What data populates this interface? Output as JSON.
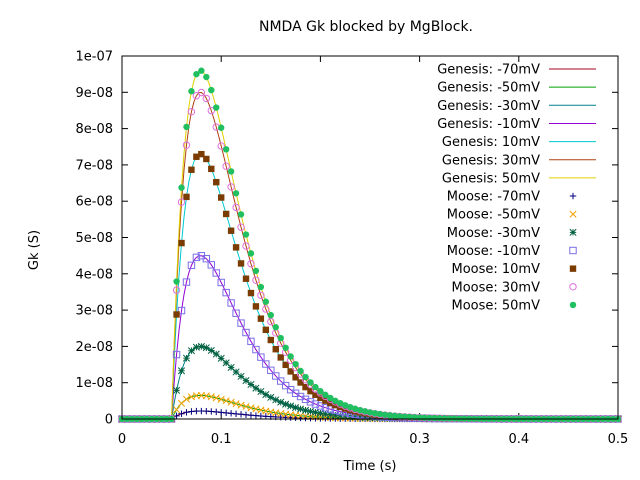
{
  "chart_data": {
    "type": "line",
    "title": "NMDA Gk blocked by MgBlock.",
    "xlabel": "Time (s)",
    "ylabel": "Gk (S)",
    "xlim": [
      0,
      0.5
    ],
    "ylim": [
      0,
      1e-07
    ],
    "x_ticks": [
      0,
      0.1,
      0.2,
      0.3,
      0.4,
      0.5
    ],
    "x_tick_labels": [
      "0",
      "0.1",
      "0.2",
      "0.3",
      "0.4",
      "0.5"
    ],
    "y_ticks": [
      0,
      1e-08,
      2e-08,
      3e-08,
      4e-08,
      5e-08,
      6e-08,
      7e-08,
      8e-08,
      9e-08,
      1e-07
    ],
    "y_tick_labels": [
      "0",
      "1e-08",
      "2e-08",
      "3e-08",
      "4e-08",
      "5e-08",
      "6e-08",
      "7e-08",
      "8e-08",
      "9e-08",
      "1e-07"
    ],
    "grid": false,
    "legend_position": "top-right",
    "pulse_onset": 0.05,
    "x": [
      0,
      0.04,
      0.05,
      0.055,
      0.06,
      0.065,
      0.07,
      0.075,
      0.08,
      0.085,
      0.09,
      0.095,
      0.1,
      0.11,
      0.12,
      0.13,
      0.14,
      0.15,
      0.16,
      0.17,
      0.18,
      0.19,
      0.2,
      0.22,
      0.24,
      0.26,
      0.28,
      0.3,
      0.32,
      0.34,
      0.36,
      0.38,
      0.4,
      0.45,
      0.5
    ],
    "series": [
      {
        "name": "Genesis: -70mV",
        "kind": "line",
        "color": "#a0001e",
        "peak": 2.2e-09
      },
      {
        "name": "Genesis: -50mV",
        "kind": "line",
        "color": "#00a000",
        "peak": 6.5e-09
      },
      {
        "name": "Genesis: -30mV",
        "kind": "line",
        "color": "#00808a",
        "peak": 2e-08
      },
      {
        "name": "Genesis: -10mV",
        "kind": "line",
        "color": "#9400d3",
        "peak": 4.5e-08
      },
      {
        "name": "Genesis: 10mV",
        "kind": "line",
        "color": "#00c8d0",
        "peak": 7.3e-08
      },
      {
        "name": "Genesis: 30mV",
        "kind": "line",
        "color": "#b04010",
        "peak": 9e-08
      },
      {
        "name": "Genesis: 50mV",
        "kind": "line",
        "color": "#e0d000",
        "peak": 9.6e-08
      },
      {
        "name": "Moose: -70mV",
        "kind": "points",
        "marker": "plus",
        "color": "#000080",
        "peak": 2.2e-09
      },
      {
        "name": "Moose: -50mV",
        "kind": "points",
        "marker": "cross",
        "color": "#f0a000",
        "peak": 6.5e-09
      },
      {
        "name": "Moose: -30mV",
        "kind": "points",
        "marker": "star",
        "color": "#006040",
        "peak": 2e-08
      },
      {
        "name": "Moose: -10mV",
        "kind": "points",
        "marker": "open-square",
        "color": "#7a6ee8",
        "peak": 4.5e-08
      },
      {
        "name": "Moose: 10mV",
        "kind": "points",
        "marker": "filled-square",
        "color": "#7a3c00",
        "peak": 7.3e-08
      },
      {
        "name": "Moose: 30mV",
        "kind": "points",
        "marker": "open-circle",
        "color": "#e070e0",
        "peak": 9e-08
      },
      {
        "name": "Moose: 50mV",
        "kind": "points",
        "marker": "filled-circle",
        "color": "#20c060",
        "peak": 9.6e-08
      }
    ]
  }
}
